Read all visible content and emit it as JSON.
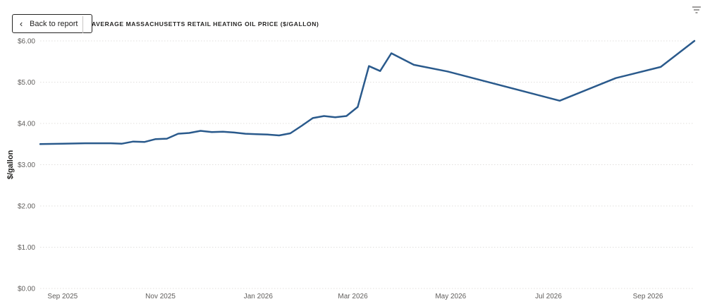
{
  "header": {
    "back_label": "Back to report",
    "title": "AVERAGE MASSACHUSETTS RETAIL HEATING OIL PRICE ($/GALLON)"
  },
  "icons": {
    "back": "chevron-left-icon",
    "filter": "filter-icon"
  },
  "colors": {
    "line": "#2a5a8c",
    "grid": "#e1dfdd",
    "text": "#605e5c"
  },
  "chart_data": {
    "type": "line",
    "ylabel": "$/gallon",
    "xlabel": "",
    "ylim": [
      0,
      6
    ],
    "yticks": [
      0,
      1,
      2,
      3,
      4,
      5,
      6
    ],
    "ytick_labels": [
      "$0.00",
      "$1.00",
      "$2.00",
      "$3.00",
      "$4.00",
      "$5.00",
      "$6.00"
    ],
    "xlim": [
      "2025-08-18",
      "2026-09-30"
    ],
    "xticks": [
      "2025-09-01",
      "2025-11-01",
      "2026-01-01",
      "2026-03-01",
      "2026-05-01",
      "2026-07-01",
      "2026-09-01"
    ],
    "xtick_labels": [
      "Sep 2025",
      "Nov 2025",
      "Jan 2026",
      "Mar 2026",
      "May 2026",
      "Jul 2026",
      "Sep 2026"
    ],
    "grid": true,
    "series": [
      {
        "x": [
          "2025-08-18",
          "2025-09-01",
          "2025-09-15",
          "2025-10-01",
          "2025-10-08",
          "2025-10-15",
          "2025-10-22",
          "2025-10-29",
          "2025-11-05",
          "2025-11-12",
          "2025-11-19",
          "2025-11-26",
          "2025-12-03",
          "2025-12-10",
          "2025-12-17",
          "2025-12-24",
          "2025-12-31",
          "2026-01-07",
          "2026-01-14",
          "2026-01-21",
          "2026-01-28",
          "2026-02-04",
          "2026-02-11",
          "2026-02-18",
          "2026-02-25",
          "2026-03-04",
          "2026-03-11",
          "2026-03-18",
          "2026-03-25",
          "2026-04-08",
          "2026-04-29",
          "2026-07-08",
          "2026-08-12",
          "2026-09-09",
          "2026-09-30"
        ],
        "values": [
          3.5,
          3.51,
          3.52,
          3.52,
          3.51,
          3.56,
          3.55,
          3.62,
          3.63,
          3.75,
          3.77,
          3.82,
          3.79,
          3.8,
          3.78,
          3.75,
          3.74,
          3.73,
          3.71,
          3.76,
          3.94,
          4.13,
          4.18,
          4.15,
          4.18,
          4.4,
          5.39,
          5.27,
          5.7,
          5.42,
          5.26,
          4.55,
          5.1,
          5.37,
          6.0
        ]
      }
    ]
  }
}
